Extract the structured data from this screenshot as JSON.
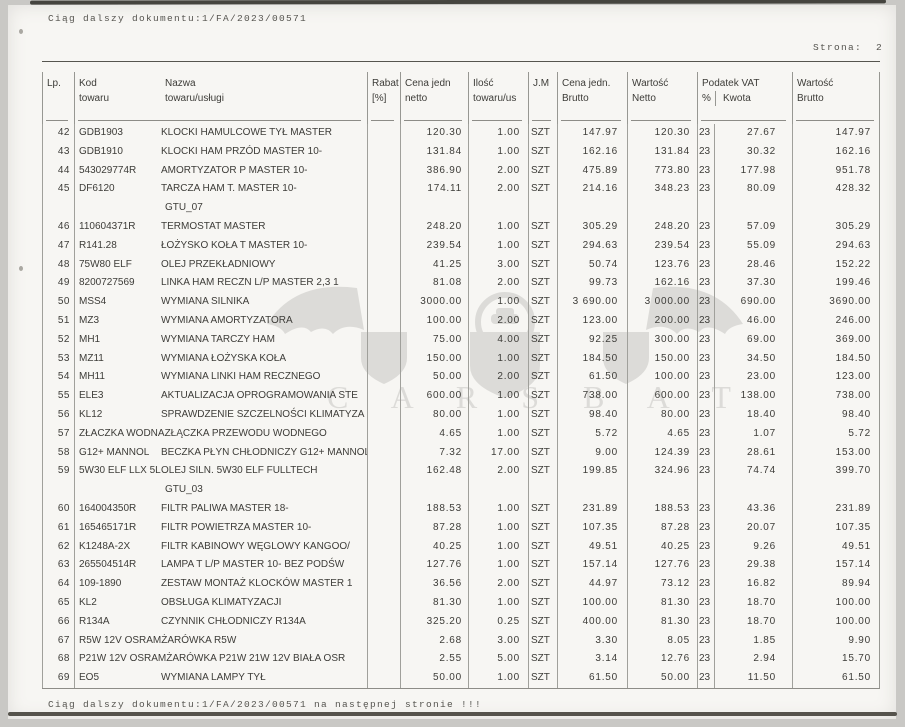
{
  "page": {
    "header_left": "Ciąg dalszy dokumentu:1/FA/2023/00571",
    "page_label": "Strona:  2",
    "footer": "Ciąg dalszy dokumentu:1/FA/2023/00571 na następnej stronie !!!"
  },
  "watermark": {
    "text": "C A R S B A T"
  },
  "table": {
    "headers": {
      "lp": "Lp.",
      "kod1": "Kod",
      "kod2": "towaru",
      "nazwa1": "Nazwa",
      "nazwa2": "towaru/usługi",
      "rabat1": "Rabat",
      "rabat2": "[%]",
      "cnetto1": "Cena jedn",
      "cnetto2": "netto",
      "ilosc1": "Ilość",
      "ilosc2": "towaru/us",
      "jm": "J.M",
      "cbrutto1": "Cena jedn.",
      "cbrutto2": "Brutto",
      "wnetto1": "Wartość",
      "wnetto2": "Netto",
      "vat": "Podatek VAT",
      "vat_proc": "%",
      "vat_kwota": "Kwota",
      "wbrutto1": "Wartość",
      "wbrutto2": "Brutto"
    },
    "rows": [
      {
        "lp": "42",
        "kod": "GDB1903",
        "nazwa": "KLOCKI HAMULCOWE TYŁ MASTER",
        "rabat": "",
        "cena_jedn_netto": "120.30",
        "ilosc": "1.00",
        "jm": "SZT",
        "cena_jedn_brutto": "147.97",
        "wartosc_netto": "120.30",
        "vat_proc": "23",
        "vat_kwota": "27.67",
        "wartosc_brutto": "147.97"
      },
      {
        "lp": "43",
        "kod": "GDB1910",
        "nazwa": "KLOCKI HAM PRZÓD MASTER 10-",
        "rabat": "",
        "cena_jedn_netto": "131.84",
        "ilosc": "1.00",
        "jm": "SZT",
        "cena_jedn_brutto": "162.16",
        "wartosc_netto": "131.84",
        "vat_proc": "23",
        "vat_kwota": "30.32",
        "wartosc_brutto": "162.16"
      },
      {
        "lp": "44",
        "kod": "543029774R",
        "nazwa": "AMORTYZATOR P MASTER 10-",
        "rabat": "",
        "cena_jedn_netto": "386.90",
        "ilosc": "2.00",
        "jm": "SZT",
        "cena_jedn_brutto": "475.89",
        "wartosc_netto": "773.80",
        "vat_proc": "23",
        "vat_kwota": "177.98",
        "wartosc_brutto": "951.78"
      },
      {
        "lp": "45",
        "kod": "DF6120",
        "nazwa": "TARCZA HAM T. MASTER 10-",
        "nazwa_cd": "GTU_07",
        "rabat": "",
        "cena_jedn_netto": "174.11",
        "ilosc": "2.00",
        "jm": "SZT",
        "cena_jedn_brutto": "214.16",
        "wartosc_netto": "348.23",
        "vat_proc": "23",
        "vat_kwota": "80.09",
        "wartosc_brutto": "428.32"
      },
      {
        "lp": "46",
        "kod": "110604371R",
        "nazwa": "TERMOSTAT MASTER",
        "rabat": "",
        "cena_jedn_netto": "248.20",
        "ilosc": "1.00",
        "jm": "SZT",
        "cena_jedn_brutto": "305.29",
        "wartosc_netto": "248.20",
        "vat_proc": "23",
        "vat_kwota": "57.09",
        "wartosc_brutto": "305.29"
      },
      {
        "lp": "47",
        "kod": "R141.28",
        "nazwa": "ŁOŻYSKO KOŁA T MASTER 10-",
        "rabat": "",
        "cena_jedn_netto": "239.54",
        "ilosc": "1.00",
        "jm": "SZT",
        "cena_jedn_brutto": "294.63",
        "wartosc_netto": "239.54",
        "vat_proc": "23",
        "vat_kwota": "55.09",
        "wartosc_brutto": "294.63"
      },
      {
        "lp": "48",
        "kod": "75W80 ELF",
        "nazwa": "OLEJ PRZEKŁADNIOWY",
        "rabat": "",
        "cena_jedn_netto": "41.25",
        "ilosc": "3.00",
        "jm": "SZT",
        "cena_jedn_brutto": "50.74",
        "wartosc_netto": "123.76",
        "vat_proc": "23",
        "vat_kwota": "28.46",
        "wartosc_brutto": "152.22"
      },
      {
        "lp": "49",
        "kod": "8200727569",
        "nazwa": "LINKA HAM RECZN L/P MASTER 2,3 1",
        "rabat": "",
        "cena_jedn_netto": "81.08",
        "ilosc": "2.00",
        "jm": "SZT",
        "cena_jedn_brutto": "99.73",
        "wartosc_netto": "162.16",
        "vat_proc": "23",
        "vat_kwota": "37.30",
        "wartosc_brutto": "199.46"
      },
      {
        "lp": "50",
        "kod": "MSS4",
        "nazwa": "WYMIANA SILNIKA",
        "rabat": "",
        "cena_jedn_netto": "3000.00",
        "ilosc": "1.00",
        "jm": "SZT",
        "cena_jedn_brutto": "3 690.00",
        "wartosc_netto": "3 000.00",
        "vat_proc": "23",
        "vat_kwota": "690.00",
        "wartosc_brutto": "3690.00"
      },
      {
        "lp": "51",
        "kod": "MZ3",
        "nazwa": "WYMIANA AMORTYZATORA",
        "rabat": "",
        "cena_jedn_netto": "100.00",
        "ilosc": "2.00",
        "jm": "SZT",
        "cena_jedn_brutto": "123.00",
        "wartosc_netto": "200.00",
        "vat_proc": "23",
        "vat_kwota": "46.00",
        "wartosc_brutto": "246.00"
      },
      {
        "lp": "52",
        "kod": "MH1",
        "nazwa": "WYMIANA TARCZY HAM",
        "rabat": "",
        "cena_jedn_netto": "75.00",
        "ilosc": "4.00",
        "jm": "SZT",
        "cena_jedn_brutto": "92.25",
        "wartosc_netto": "300.00",
        "vat_proc": "23",
        "vat_kwota": "69.00",
        "wartosc_brutto": "369.00"
      },
      {
        "lp": "53",
        "kod": "MZ11",
        "nazwa": "WYMIANA ŁOŻYSKA KOŁA",
        "rabat": "",
        "cena_jedn_netto": "150.00",
        "ilosc": "1.00",
        "jm": "SZT",
        "cena_jedn_brutto": "184.50",
        "wartosc_netto": "150.00",
        "vat_proc": "23",
        "vat_kwota": "34.50",
        "wartosc_brutto": "184.50"
      },
      {
        "lp": "54",
        "kod": "MH11",
        "nazwa": "WYMIANA LINKI HAM RECZNEGO",
        "rabat": "",
        "cena_jedn_netto": "50.00",
        "ilosc": "2.00",
        "jm": "SZT",
        "cena_jedn_brutto": "61.50",
        "wartosc_netto": "100.00",
        "vat_proc": "23",
        "vat_kwota": "23.00",
        "wartosc_brutto": "123.00"
      },
      {
        "lp": "55",
        "kod": "ELE3",
        "nazwa": "AKTUALIZACJA OPROGRAMOWANIA STE",
        "rabat": "",
        "cena_jedn_netto": "600.00",
        "ilosc": "1.00",
        "jm": "SZT",
        "cena_jedn_brutto": "738.00",
        "wartosc_netto": "600.00",
        "vat_proc": "23",
        "vat_kwota": "138.00",
        "wartosc_brutto": "738.00"
      },
      {
        "lp": "56",
        "kod": "KL12",
        "nazwa": "SPRAWDZENIE SZCZELNOŚCI KLIMATYZA",
        "rabat": "",
        "cena_jedn_netto": "80.00",
        "ilosc": "1.00",
        "jm": "SZT",
        "cena_jedn_brutto": "98.40",
        "wartosc_netto": "80.00",
        "vat_proc": "23",
        "vat_kwota": "18.40",
        "wartosc_brutto": "98.40"
      },
      {
        "lp": "57",
        "kod": "ZŁACZKA WODNA",
        "nazwa": "ZŁĄCZKA PRZEWODU WODNEGO",
        "rabat": "",
        "cena_jedn_netto": "4.65",
        "ilosc": "1.00",
        "jm": "SZT",
        "cena_jedn_brutto": "5.72",
        "wartosc_netto": "4.65",
        "vat_proc": "23",
        "vat_kwota": "1.07",
        "wartosc_brutto": "5.72"
      },
      {
        "lp": "58",
        "kod": "G12+ MANNOL",
        "nazwa": "BECZKA PŁYN CHŁODNICZY G12+ MANNOL",
        "rabat": "",
        "cena_jedn_netto": "7.32",
        "ilosc": "17.00",
        "jm": "SZT",
        "cena_jedn_brutto": "9.00",
        "wartosc_netto": "124.39",
        "vat_proc": "23",
        "vat_kwota": "28.61",
        "wartosc_brutto": "153.00"
      },
      {
        "lp": "59",
        "kod": "5W30 ELF LLX 5L",
        "nazwa": "OLEJ SILN. 5W30 ELF FULLTECH",
        "nazwa_cd": "GTU_03",
        "rabat": "",
        "cena_jedn_netto": "162.48",
        "ilosc": "2.00",
        "jm": "SZT",
        "cena_jedn_brutto": "199.85",
        "wartosc_netto": "324.96",
        "vat_proc": "23",
        "vat_kwota": "74.74",
        "wartosc_brutto": "399.70"
      },
      {
        "lp": "60",
        "kod": "164004350R",
        "nazwa": "FILTR PALIWA MASTER 18-",
        "rabat": "",
        "cena_jedn_netto": "188.53",
        "ilosc": "1.00",
        "jm": "SZT",
        "cena_jedn_brutto": "231.89",
        "wartosc_netto": "188.53",
        "vat_proc": "23",
        "vat_kwota": "43.36",
        "wartosc_brutto": "231.89"
      },
      {
        "lp": "61",
        "kod": "165465171R",
        "nazwa": "FILTR POWIETRZA MASTER 10-",
        "rabat": "",
        "cena_jedn_netto": "87.28",
        "ilosc": "1.00",
        "jm": "SZT",
        "cena_jedn_brutto": "107.35",
        "wartosc_netto": "87.28",
        "vat_proc": "23",
        "vat_kwota": "20.07",
        "wartosc_brutto": "107.35"
      },
      {
        "lp": "62",
        "kod": "K1248A-2X",
        "nazwa": "FILTR KABINOWY WĘGLOWY KANGOO/",
        "rabat": "",
        "cena_jedn_netto": "40.25",
        "ilosc": "1.00",
        "jm": "SZT",
        "cena_jedn_brutto": "49.51",
        "wartosc_netto": "40.25",
        "vat_proc": "23",
        "vat_kwota": "9.26",
        "wartosc_brutto": "49.51"
      },
      {
        "lp": "63",
        "kod": "265504514R",
        "nazwa": "LAMPA T L/P MASTER 10- BEZ PODŚW",
        "rabat": "",
        "cena_jedn_netto": "127.76",
        "ilosc": "1.00",
        "jm": "SZT",
        "cena_jedn_brutto": "157.14",
        "wartosc_netto": "127.76",
        "vat_proc": "23",
        "vat_kwota": "29.38",
        "wartosc_brutto": "157.14"
      },
      {
        "lp": "64",
        "kod": "109-1890",
        "nazwa": "ZESTAW MONTAŻ KLOCKÓW MASTER 1",
        "rabat": "",
        "cena_jedn_netto": "36.56",
        "ilosc": "2.00",
        "jm": "SZT",
        "cena_jedn_brutto": "44.97",
        "wartosc_netto": "73.12",
        "vat_proc": "23",
        "vat_kwota": "16.82",
        "wartosc_brutto": "89.94"
      },
      {
        "lp": "65",
        "kod": "KL2",
        "nazwa": "OBSŁUGA KLIMATYZACJI",
        "rabat": "",
        "cena_jedn_netto": "81.30",
        "ilosc": "1.00",
        "jm": "SZT",
        "cena_jedn_brutto": "100.00",
        "wartosc_netto": "81.30",
        "vat_proc": "23",
        "vat_kwota": "18.70",
        "wartosc_brutto": "100.00"
      },
      {
        "lp": "66",
        "kod": "R134A",
        "nazwa": "CZYNNIK CHŁODNICZY R134A",
        "rabat": "",
        "cena_jedn_netto": "325.20",
        "ilosc": "0.25",
        "jm": "SZT",
        "cena_jedn_brutto": "400.00",
        "wartosc_netto": "81.30",
        "vat_proc": "23",
        "vat_kwota": "18.70",
        "wartosc_brutto": "100.00"
      },
      {
        "lp": "67",
        "kod": "R5W 12V OSRAM",
        "nazwa": "ŻARÓWKA R5W",
        "rabat": "",
        "cena_jedn_netto": "2.68",
        "ilosc": "3.00",
        "jm": "SZT",
        "cena_jedn_brutto": "3.30",
        "wartosc_netto": "8.05",
        "vat_proc": "23",
        "vat_kwota": "1.85",
        "wartosc_brutto": "9.90"
      },
      {
        "lp": "68",
        "kod": "P21W 12V OSRAM",
        "nazwa": "ŻARÓWKA P21W 21W 12V BIAŁA OSR",
        "rabat": "",
        "cena_jedn_netto": "2.55",
        "ilosc": "5.00",
        "jm": "SZT",
        "cena_jedn_brutto": "3.14",
        "wartosc_netto": "12.76",
        "vat_proc": "23",
        "vat_kwota": "2.94",
        "wartosc_brutto": "15.70"
      },
      {
        "lp": "69",
        "kod": "EO5",
        "nazwa": "WYMIANA LAMPY TYŁ",
        "rabat": "",
        "cena_jedn_netto": "50.00",
        "ilosc": "1.00",
        "jm": "SZT",
        "cena_jedn_brutto": "61.50",
        "wartosc_netto": "50.00",
        "vat_proc": "23",
        "vat_kwota": "11.50",
        "wartosc_brutto": "61.50"
      }
    ]
  }
}
